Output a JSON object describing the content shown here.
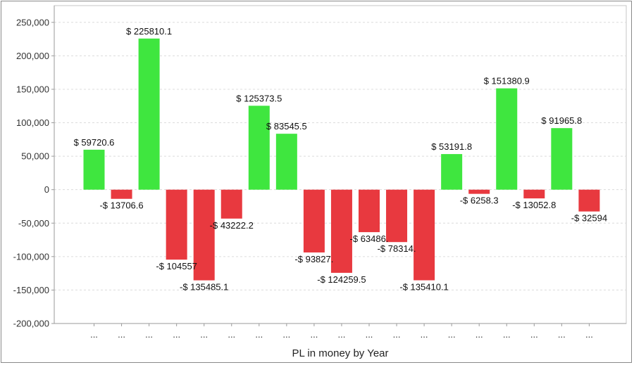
{
  "chart_data": {
    "type": "bar",
    "title": "",
    "xlabel": "PL in money by Year",
    "ylabel": "",
    "ylim": [
      -200000,
      275000
    ],
    "yticks": [
      -200000,
      -150000,
      -100000,
      -50000,
      0,
      50000,
      100000,
      150000,
      200000,
      250000
    ],
    "ytick_labels": [
      "-200,000",
      "-150,000",
      "-100,000",
      "-50,000",
      "0",
      "50,000",
      "100,000",
      "150,000",
      "200,000",
      "250,000"
    ],
    "grid": true,
    "legend": "none",
    "categories": [
      "...",
      "...",
      "...",
      "...",
      "...",
      "...",
      "...",
      "...",
      "...",
      "...",
      "...",
      "...",
      "...",
      "...",
      "...",
      "...",
      "...",
      "...",
      "..."
    ],
    "values": [
      59720.6,
      -13706.6,
      225810.1,
      -104557,
      -135485.1,
      -43222.2,
      125373.5,
      83545.5,
      -93827,
      -124259.5,
      -63486,
      -78314,
      -135410.1,
      53191.8,
      -6258.3,
      151380.9,
      -13052.8,
      91965.8,
      -32594
    ],
    "data_labels": [
      "$ 59720.6",
      "-$ 13706.6",
      "$ 225810.1",
      "-$ 104557",
      "-$ 135485.1",
      "-$ 43222.2",
      "$ 125373.5",
      "$ 83545.5",
      "-$ 93827.",
      "-$ 124259.5",
      "-$ 63486.",
      "-$ 78314.",
      "-$ 135410.1",
      "$ 53191.8",
      "-$ 6258.3",
      "$ 151380.9",
      "-$ 13052.8",
      "$ 91965.8",
      "-$ 32594"
    ],
    "colors": {
      "positive": "#3fe63f",
      "negative": "#e8393f",
      "grid": "#dcdcdc",
      "axis": "#9a9a9a",
      "plot_border": "#c4c4c4"
    }
  }
}
